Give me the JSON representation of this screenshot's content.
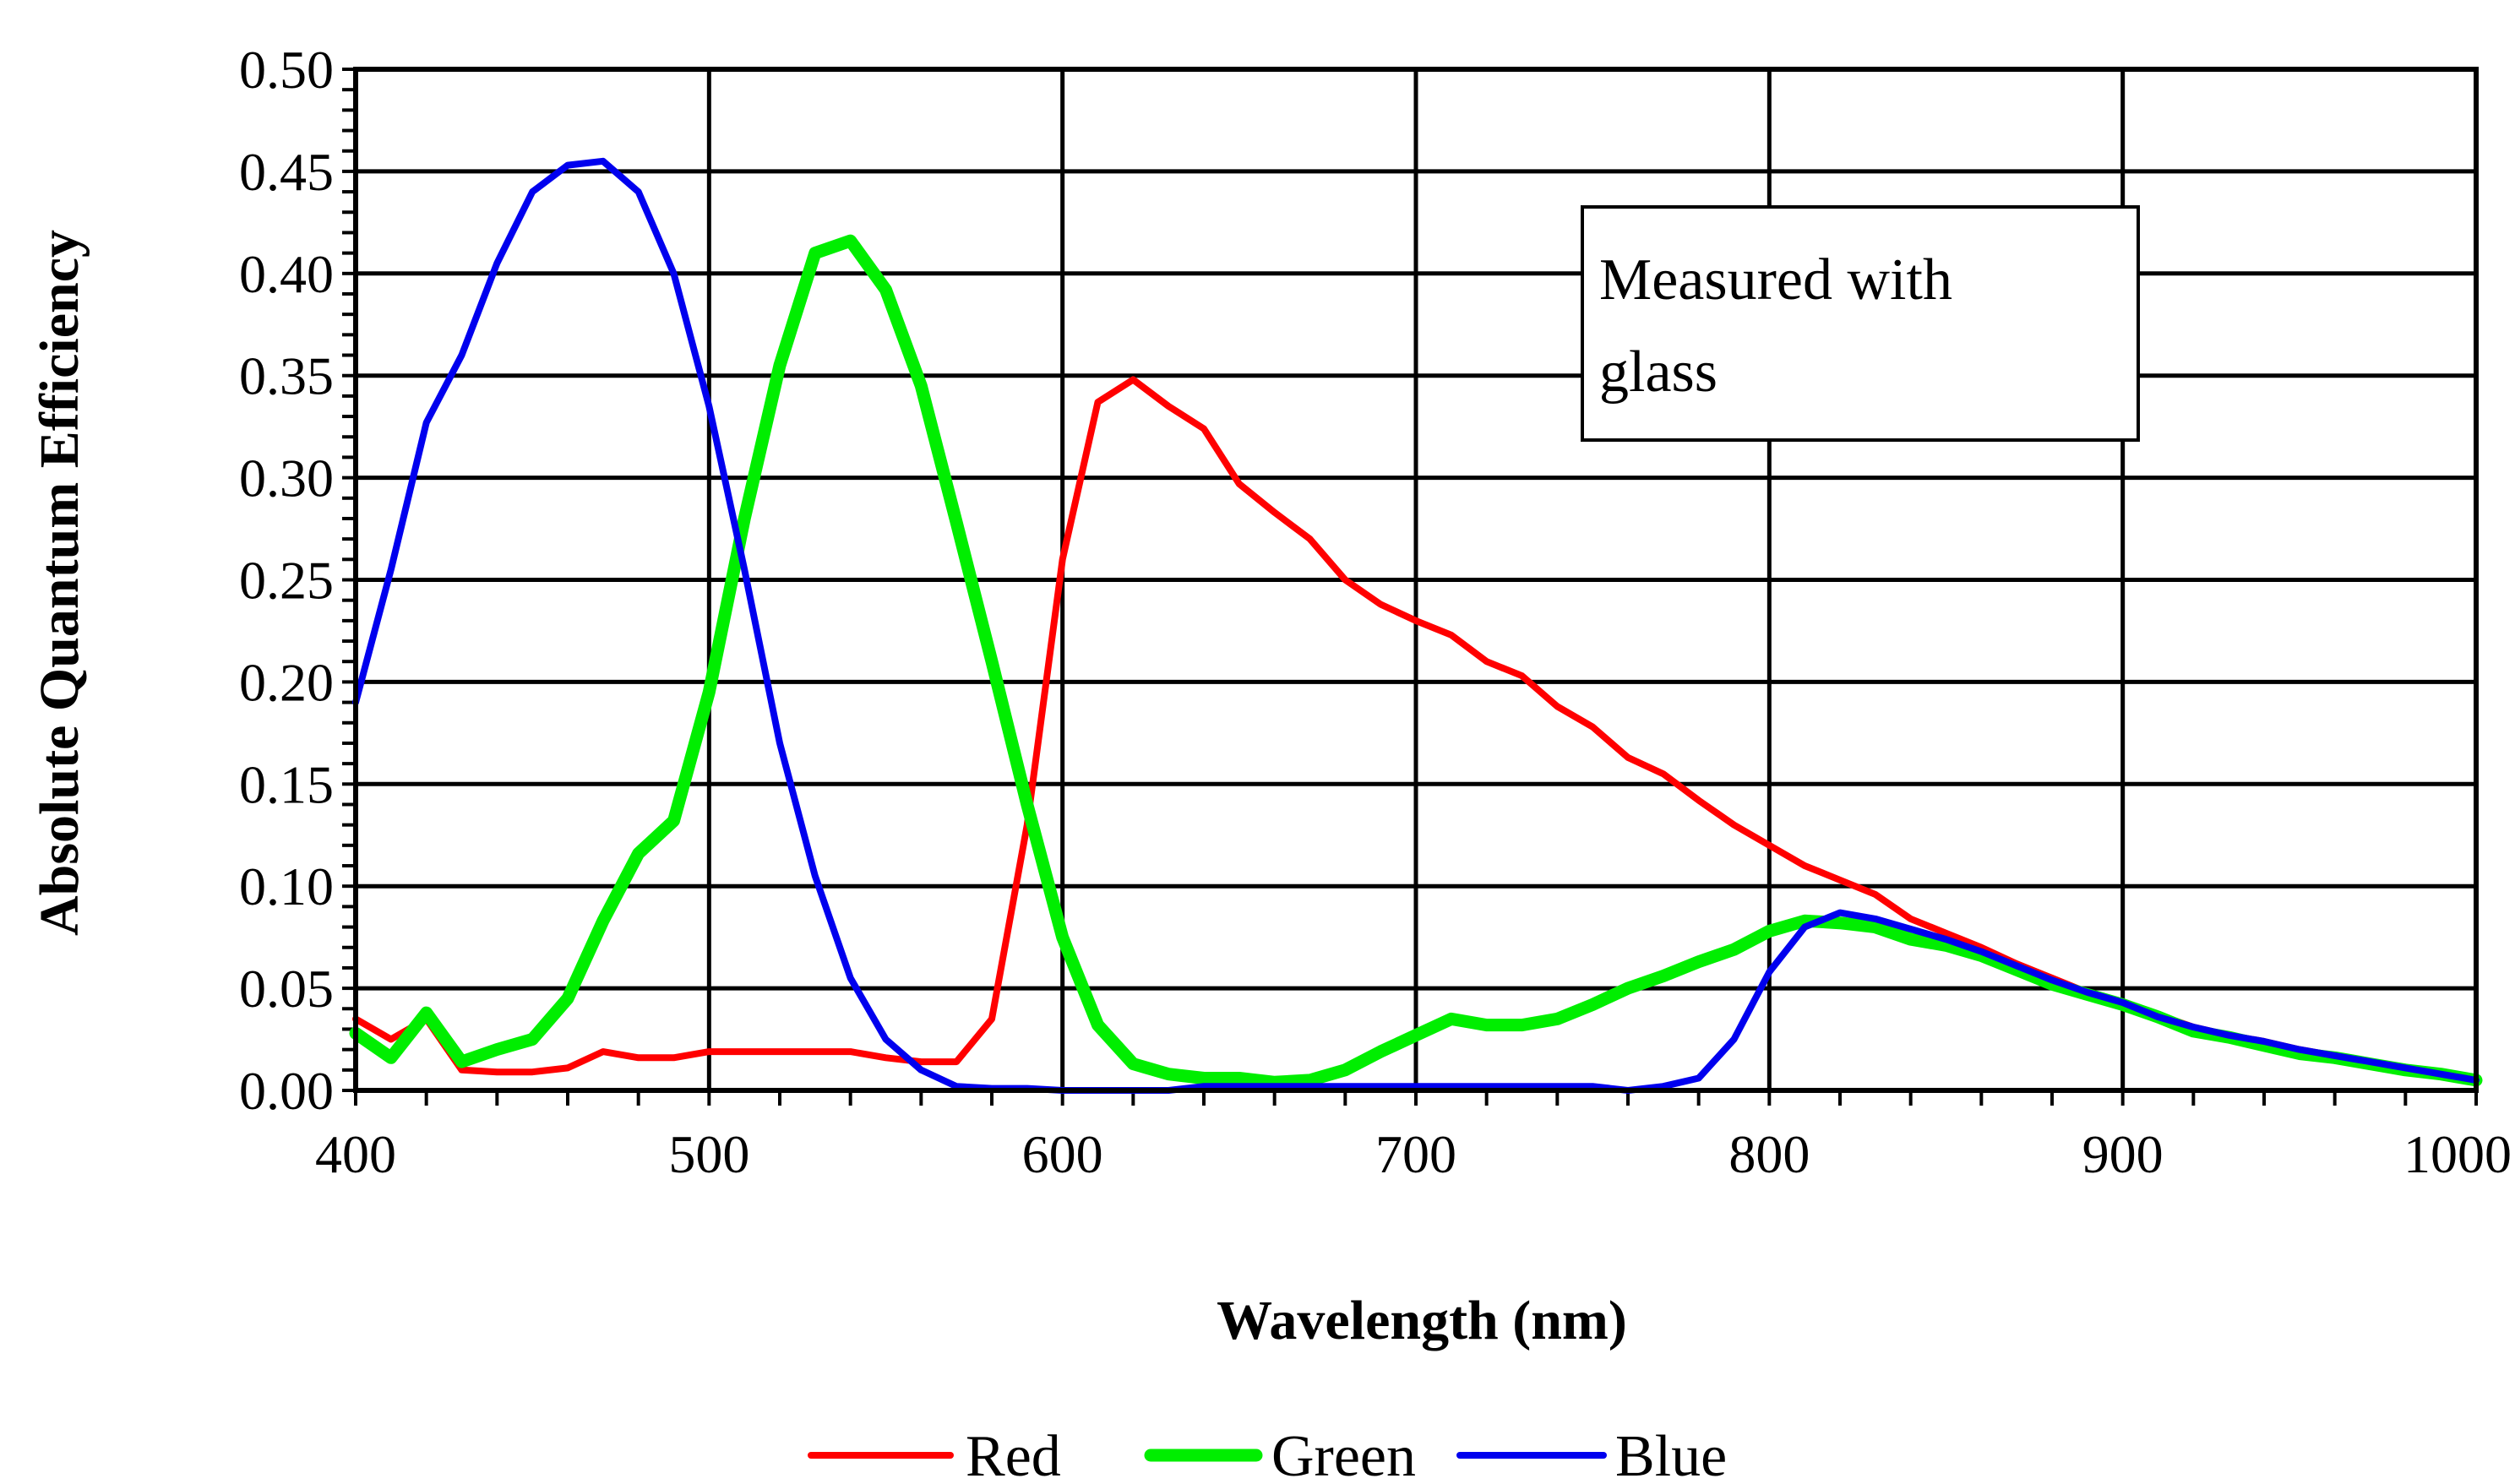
{
  "chart_data": {
    "type": "line",
    "title": "",
    "xlabel": "Wavelength (nm)",
    "ylabel": "Absolute Quantum Efficiency",
    "xlim": [
      400,
      1000
    ],
    "ylim": [
      0,
      0.5
    ],
    "x_ticks": [
      400,
      500,
      600,
      700,
      800,
      900,
      1000
    ],
    "x_tick_labels": [
      "400",
      "500",
      "600",
      "700",
      "800",
      "900",
      "1000"
    ],
    "y_ticks": [
      0,
      0.05,
      0.1,
      0.15,
      0.2,
      0.25,
      0.3,
      0.35,
      0.4,
      0.45,
      0.5
    ],
    "y_tick_labels": [
      "0.00",
      "0.05",
      "0.10",
      "0.15",
      "0.20",
      "0.25",
      "0.30",
      "0.35",
      "0.40",
      "0.45",
      "0.50"
    ],
    "grid": true,
    "legend_position": "bottom-center",
    "annotation": {
      "lines": [
        "Measured with",
        "glass"
      ]
    },
    "series": [
      {
        "name": "Red",
        "color": "#ff0000",
        "x": [
          400,
          410,
          420,
          430,
          440,
          450,
          460,
          470,
          480,
          490,
          500,
          510,
          520,
          530,
          540,
          550,
          560,
          570,
          580,
          590,
          600,
          610,
          620,
          630,
          640,
          650,
          660,
          670,
          680,
          690,
          700,
          710,
          720,
          730,
          740,
          750,
          760,
          770,
          780,
          790,
          800,
          810,
          820,
          830,
          840,
          850,
          860,
          870,
          880,
          890,
          900,
          910,
          920,
          930,
          940,
          950,
          960,
          970,
          980,
          990,
          1000
        ],
        "y": [
          0.035,
          0.025,
          0.035,
          0.01,
          0.009,
          0.009,
          0.011,
          0.019,
          0.016,
          0.016,
          0.019,
          0.019,
          0.019,
          0.019,
          0.019,
          0.016,
          0.014,
          0.014,
          0.035,
          0.13,
          0.26,
          0.337,
          0.348,
          0.335,
          0.324,
          0.297,
          0.283,
          0.27,
          0.25,
          0.238,
          0.23,
          0.223,
          0.21,
          0.203,
          0.188,
          0.178,
          0.163,
          0.155,
          0.142,
          0.13,
          0.12,
          0.11,
          0.103,
          0.096,
          0.084,
          0.077,
          0.07,
          0.062,
          0.055,
          0.048,
          0.043,
          0.037,
          0.031,
          0.027,
          0.024,
          0.02,
          0.017,
          0.014,
          0.011,
          0.008,
          0.005
        ]
      },
      {
        "name": "Green",
        "color": "#00ee00",
        "x": [
          400,
          410,
          420,
          430,
          440,
          450,
          460,
          470,
          480,
          490,
          500,
          510,
          520,
          530,
          540,
          550,
          560,
          570,
          580,
          590,
          600,
          610,
          620,
          630,
          640,
          650,
          660,
          670,
          680,
          690,
          700,
          710,
          720,
          730,
          740,
          750,
          760,
          770,
          780,
          790,
          800,
          810,
          820,
          830,
          840,
          850,
          860,
          870,
          880,
          890,
          900,
          910,
          920,
          930,
          940,
          950,
          960,
          970,
          980,
          990,
          1000
        ],
        "y": [
          0.028,
          0.016,
          0.038,
          0.014,
          0.02,
          0.025,
          0.045,
          0.083,
          0.116,
          0.132,
          0.195,
          0.28,
          0.355,
          0.41,
          0.416,
          0.392,
          0.345,
          0.278,
          0.21,
          0.14,
          0.075,
          0.032,
          0.013,
          0.008,
          0.006,
          0.006,
          0.004,
          0.005,
          0.01,
          0.019,
          0.027,
          0.035,
          0.032,
          0.032,
          0.035,
          0.042,
          0.05,
          0.056,
          0.063,
          0.069,
          0.078,
          0.083,
          0.082,
          0.08,
          0.074,
          0.071,
          0.066,
          0.059,
          0.052,
          0.047,
          0.042,
          0.036,
          0.029,
          0.026,
          0.022,
          0.018,
          0.016,
          0.013,
          0.01,
          0.008,
          0.005
        ]
      },
      {
        "name": "Blue",
        "color": "#0000ee",
        "x": [
          400,
          410,
          420,
          430,
          440,
          450,
          460,
          470,
          480,
          490,
          500,
          510,
          520,
          530,
          540,
          550,
          560,
          570,
          580,
          590,
          600,
          610,
          620,
          630,
          640,
          650,
          660,
          670,
          680,
          690,
          700,
          710,
          720,
          730,
          740,
          750,
          760,
          770,
          780,
          790,
          800,
          810,
          820,
          830,
          840,
          850,
          860,
          870,
          880,
          890,
          900,
          910,
          920,
          930,
          940,
          950,
          960,
          970,
          980,
          990,
          1000
        ],
        "y": [
          0.19,
          0.255,
          0.327,
          0.36,
          0.405,
          0.44,
          0.453,
          0.455,
          0.44,
          0.4,
          0.335,
          0.255,
          0.17,
          0.105,
          0.055,
          0.025,
          0.01,
          0.002,
          0.001,
          0.001,
          0.0,
          0.0,
          0.0,
          0.0,
          0.002,
          0.002,
          0.002,
          0.002,
          0.002,
          0.002,
          0.002,
          0.002,
          0.002,
          0.002,
          0.002,
          0.002,
          0.0,
          0.002,
          0.006,
          0.025,
          0.058,
          0.08,
          0.087,
          0.084,
          0.079,
          0.074,
          0.068,
          0.061,
          0.054,
          0.048,
          0.043,
          0.036,
          0.031,
          0.027,
          0.024,
          0.02,
          0.017,
          0.014,
          0.011,
          0.008,
          0.005
        ]
      }
    ]
  }
}
